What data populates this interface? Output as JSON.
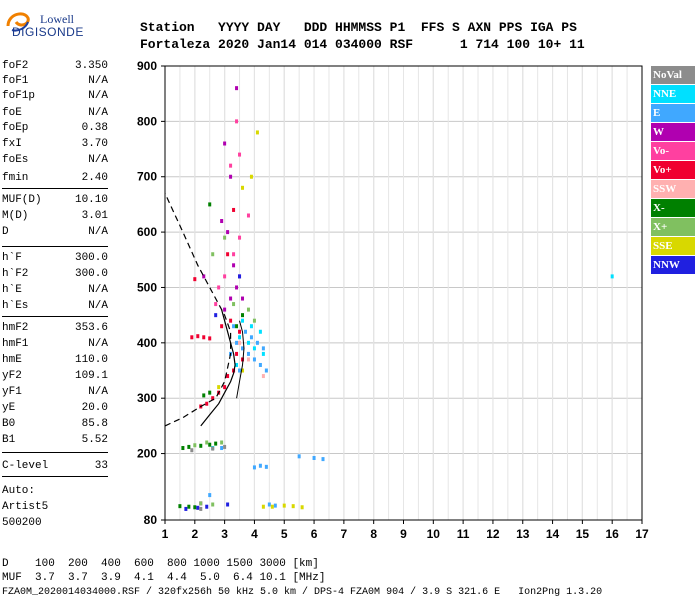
{
  "logo": {
    "line1": "Lowell",
    "line2": "DIGISONDE"
  },
  "header": {
    "labels": "Station   YYYY DAY   DDD HHMMSS P1  FFS S AXN PPS IGA PS",
    "values": "Fortaleza 2020 Jan14 014 034000 RSF      1 714 100 10+ 11"
  },
  "params": [
    {
      "label": "foF2",
      "value": "3.350"
    },
    {
      "label": "foF1",
      "value": "N/A"
    },
    {
      "label": "foF1p",
      "value": "N/A"
    },
    {
      "label": "foE",
      "value": "N/A"
    },
    {
      "label": "foEp",
      "value": "0.38"
    },
    {
      "label": "fxI",
      "value": "3.70"
    },
    {
      "label": "foEs",
      "value": "N/A"
    },
    {
      "label": "fmin",
      "value": "2.40"
    },
    {
      "label": "MUF(D)",
      "value": "10.10"
    },
    {
      "label": "M(D)",
      "value": "3.01"
    },
    {
      "label": "D",
      "value": "N/A"
    },
    {
      "label": "h`F",
      "value": "300.0"
    },
    {
      "label": "h`F2",
      "value": "300.0"
    },
    {
      "label": "h`E",
      "value": "N/A"
    },
    {
      "label": "h`Es",
      "value": "N/A"
    },
    {
      "label": "hmF2",
      "value": "353.6"
    },
    {
      "label": "hmF1",
      "value": "N/A"
    },
    {
      "label": "hmE",
      "value": "110.0"
    },
    {
      "label": "yF2",
      "value": "109.1"
    },
    {
      "label": "yF1",
      "value": "N/A"
    },
    {
      "label": "yE",
      "value": "20.0"
    },
    {
      "label": "B0",
      "value": "85.8"
    },
    {
      "label": "B1",
      "value": "5.52"
    },
    {
      "label": "C-level",
      "value": "33"
    }
  ],
  "auto": {
    "line1": "Auto:",
    "line2": "Artist5",
    "line3": "500200"
  },
  "legend": [
    {
      "label": "NoVal",
      "color": "#8c8c8c"
    },
    {
      "label": "NNE",
      "color": "#00e0ff"
    },
    {
      "label": "E",
      "color": "#40a8ff"
    },
    {
      "label": "W",
      "color": "#b000b0"
    },
    {
      "label": "Vo-",
      "color": "#ff40a0"
    },
    {
      "label": "Vo+",
      "color": "#f00030"
    },
    {
      "label": "SSW",
      "color": "#ffb0b0"
    },
    {
      "label": "X-",
      "color": "#008000"
    },
    {
      "label": "X+",
      "color": "#80c060"
    },
    {
      "label": "SSE",
      "color": "#d8d800"
    },
    {
      "label": "NNW",
      "color": "#2020e0"
    }
  ],
  "footer": {
    "line1": "D    100  200  400  600  800 1000 1500 3000 [km]",
    "line2": "MUF  3.7  3.7  3.9  4.1  4.4  5.0  6.4 10.1 [MHz]",
    "line3": "FZA0M_2020014034000.RSF / 320fx256h 50 kHz 5.0 km / DPS-4 FZA0M 904 / 3.9 S 321.6 E   Ion2Png 1.3.20"
  },
  "chart_data": {
    "type": "scatter",
    "title": "",
    "xlabel": "",
    "ylabel": "",
    "xlim": [
      1,
      17
    ],
    "ylim": [
      80,
      900
    ],
    "x_ticks": [
      1,
      2,
      3,
      4,
      5,
      6,
      7,
      8,
      9,
      10,
      11,
      12,
      13,
      14,
      15,
      16,
      17
    ],
    "y_ticks": [
      80,
      200,
      300,
      400,
      500,
      600,
      700,
      800,
      900
    ],
    "grid": true,
    "series": [
      {
        "name": "Vo+",
        "color": "#f00030",
        "points": [
          [
            1.9,
            410
          ],
          [
            2.1,
            412
          ],
          [
            2.3,
            410
          ],
          [
            2.5,
            408
          ],
          [
            2.6,
            300
          ],
          [
            2.8,
            310
          ],
          [
            3.0,
            320
          ],
          [
            3.1,
            340
          ],
          [
            3.3,
            350
          ],
          [
            2.4,
            290
          ],
          [
            2.2,
            285
          ],
          [
            3.5,
            420
          ],
          [
            3.2,
            440
          ],
          [
            2.9,
            430
          ],
          [
            3.4,
            380
          ],
          [
            3.6,
            370
          ],
          [
            2.0,
            515
          ],
          [
            3.3,
            640
          ],
          [
            3.1,
            560
          ]
        ]
      },
      {
        "name": "E",
        "color": "#40a8ff",
        "points": [
          [
            3.4,
            400
          ],
          [
            3.6,
            390
          ],
          [
            3.8,
            380
          ],
          [
            4.0,
            370
          ],
          [
            4.2,
            360
          ],
          [
            3.5,
            350
          ],
          [
            3.7,
            420
          ],
          [
            3.9,
            410
          ],
          [
            4.1,
            400
          ],
          [
            4.3,
            390
          ],
          [
            3.3,
            430
          ],
          [
            3.2,
            380
          ],
          [
            4.4,
            350
          ],
          [
            4.0,
            175
          ],
          [
            4.2,
            178
          ],
          [
            4.4,
            176
          ],
          [
            5.5,
            195
          ],
          [
            6.0,
            192
          ],
          [
            6.3,
            190
          ],
          [
            2.9,
            210
          ],
          [
            2.5,
            125
          ],
          [
            4.5,
            108
          ],
          [
            4.7,
            106
          ]
        ]
      },
      {
        "name": "NNE",
        "color": "#00e0ff",
        "points": [
          [
            3.5,
            410
          ],
          [
            3.8,
            400
          ],
          [
            4.0,
            390
          ],
          [
            4.3,
            380
          ],
          [
            3.6,
            440
          ],
          [
            3.9,
            430
          ],
          [
            4.2,
            420
          ],
          [
            3.4,
            360
          ],
          [
            16.0,
            520
          ],
          [
            2.6,
            210
          ]
        ]
      },
      {
        "name": "W",
        "color": "#b000b0",
        "points": [
          [
            3.0,
            460
          ],
          [
            3.2,
            480
          ],
          [
            3.4,
            500
          ],
          [
            3.5,
            520
          ],
          [
            3.3,
            540
          ],
          [
            3.1,
            600
          ],
          [
            2.9,
            620
          ],
          [
            3.6,
            480
          ],
          [
            2.3,
            520
          ],
          [
            3.2,
            700
          ],
          [
            3.0,
            760
          ],
          [
            3.4,
            860
          ],
          [
            2.2,
            110
          ]
        ]
      },
      {
        "name": "Vo-",
        "color": "#ff40a0",
        "points": [
          [
            2.8,
            500
          ],
          [
            3.0,
            520
          ],
          [
            3.3,
            560
          ],
          [
            3.5,
            590
          ],
          [
            3.2,
            720
          ],
          [
            3.5,
            740
          ],
          [
            2.7,
            470
          ],
          [
            3.8,
            630
          ],
          [
            3.4,
            800
          ]
        ]
      },
      {
        "name": "X-",
        "color": "#008000",
        "points": [
          [
            1.6,
            210
          ],
          [
            1.8,
            212
          ],
          [
            2.2,
            214
          ],
          [
            2.5,
            216
          ],
          [
            2.7,
            218
          ],
          [
            1.5,
            105
          ],
          [
            1.8,
            104
          ],
          [
            2.0,
            103
          ],
          [
            2.3,
            305
          ],
          [
            2.5,
            310
          ],
          [
            3.4,
            430
          ],
          [
            3.6,
            450
          ],
          [
            2.5,
            650
          ]
        ]
      },
      {
        "name": "X+",
        "color": "#80c060",
        "points": [
          [
            2.0,
            215
          ],
          [
            2.4,
            220
          ],
          [
            2.9,
            220
          ],
          [
            2.2,
            110
          ],
          [
            2.6,
            108
          ],
          [
            3.3,
            470
          ],
          [
            3.8,
            460
          ],
          [
            4.0,
            440
          ],
          [
            3.0,
            590
          ],
          [
            2.6,
            560
          ]
        ]
      },
      {
        "name": "SSE",
        "color": "#d8d800",
        "points": [
          [
            4.6,
            104
          ],
          [
            5.0,
            106
          ],
          [
            5.3,
            105
          ],
          [
            5.6,
            103
          ],
          [
            4.3,
            104
          ],
          [
            3.9,
            700
          ],
          [
            3.6,
            680
          ],
          [
            4.1,
            780
          ],
          [
            2.8,
            320
          ],
          [
            3.6,
            350
          ]
        ]
      },
      {
        "name": "NNW",
        "color": "#2020e0",
        "points": [
          [
            1.7,
            100
          ],
          [
            2.1,
            102
          ],
          [
            2.4,
            104
          ],
          [
            3.1,
            108
          ],
          [
            3.5,
            520
          ],
          [
            2.7,
            450
          ]
        ]
      },
      {
        "name": "NoVal",
        "color": "#8c8c8c",
        "points": [
          [
            1.9,
            206
          ],
          [
            2.6,
            209
          ],
          [
            3.0,
            212
          ],
          [
            2.2,
            100
          ]
        ]
      },
      {
        "name": "SSW",
        "color": "#ffb0b0",
        "points": [
          [
            3.5,
            400
          ],
          [
            3.8,
            370
          ],
          [
            4.3,
            340
          ]
        ]
      }
    ],
    "profile_line": [
      [
        2.2,
        250
      ],
      [
        2.5,
        270
      ],
      [
        2.8,
        290
      ],
      [
        3.0,
        310
      ],
      [
        3.2,
        330
      ],
      [
        3.3,
        345
      ],
      [
        3.35,
        360
      ],
      [
        3.3,
        380
      ],
      [
        3.2,
        400
      ],
      [
        3.05,
        430
      ],
      [
        2.9,
        460
      ]
    ],
    "trace_line": [
      [
        3.4,
        300
      ],
      [
        3.5,
        330
      ],
      [
        3.6,
        360
      ],
      [
        3.65,
        390
      ],
      [
        3.6,
        420
      ],
      [
        3.5,
        440
      ]
    ],
    "dashed_curve": [
      [
        1.0,
        250
      ],
      [
        1.6,
        265
      ],
      [
        2.2,
        285
      ],
      [
        2.7,
        300
      ],
      [
        3.0,
        330
      ],
      [
        3.2,
        380
      ],
      [
        3.2,
        420
      ],
      [
        3.0,
        450
      ],
      [
        2.6,
        490
      ],
      [
        2.1,
        540
      ],
      [
        1.6,
        600
      ],
      [
        1.0,
        670
      ]
    ]
  }
}
